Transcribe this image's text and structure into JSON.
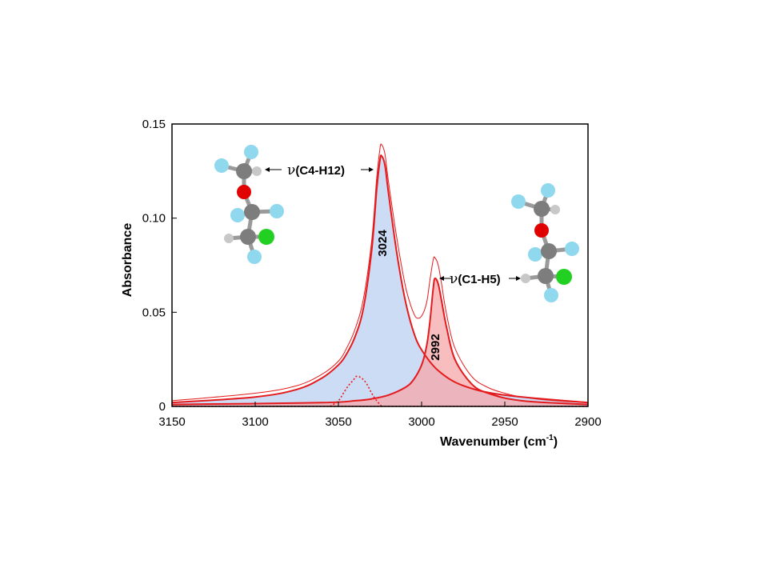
{
  "chart_data": {
    "type": "line",
    "xlabel": "Wavenumber (cm",
    "xlabel_sup": "-1",
    "xlabel_close": ")",
    "ylabel": "Absorbance",
    "xlim": [
      3150,
      2900
    ],
    "ylim": [
      0,
      0.15
    ],
    "x_ticks": [
      3150,
      3100,
      3050,
      3000,
      2950,
      2900
    ],
    "x_tick_labels": [
      "3150",
      "3100",
      "3050",
      "3000",
      "2950",
      "2900"
    ],
    "y_ticks": [
      0,
      0.05,
      0.1,
      0.15
    ],
    "y_tick_labels": [
      "0",
      "0.05",
      "0.10",
      "0.15"
    ],
    "grid": false,
    "series": [
      {
        "role": "band-3024",
        "color": "#e41a1c",
        "fill": "#c8d8f4",
        "x": [
          3150,
          3100,
          3075,
          3060,
          3050,
          3045,
          3040,
          3035,
          3030,
          3027,
          3025,
          3024,
          3022,
          3020,
          3015,
          3010,
          3005,
          3000,
          2990,
          2975,
          2950,
          2900
        ],
        "y": [
          0.002,
          0.005,
          0.009,
          0.015,
          0.022,
          0.028,
          0.037,
          0.052,
          0.083,
          0.115,
          0.131,
          0.133,
          0.128,
          0.114,
          0.082,
          0.057,
          0.04,
          0.03,
          0.019,
          0.011,
          0.006,
          0.002
        ]
      },
      {
        "role": "band-2992",
        "color": "#e41a1c",
        "fill": "#f5a8aa",
        "x": [
          3150,
          3060,
          3040,
          3030,
          3020,
          3010,
          3005,
          3000,
          2997,
          2995,
          2993,
          2992,
          2990,
          2988,
          2985,
          2980,
          2970,
          2960,
          2940,
          2900
        ],
        "y": [
          0.001,
          0.002,
          0.003,
          0.004,
          0.006,
          0.01,
          0.014,
          0.022,
          0.032,
          0.045,
          0.063,
          0.068,
          0.065,
          0.056,
          0.042,
          0.025,
          0.012,
          0.007,
          0.003,
          0.001
        ]
      },
      {
        "role": "envelope",
        "color": "#e41a1c",
        "x": [
          3150,
          3100,
          3075,
          3060,
          3050,
          3045,
          3040,
          3035,
          3030,
          3027,
          3025,
          3024,
          3022,
          3020,
          3015,
          3010,
          3007,
          3005,
          3003,
          3000,
          2997,
          2995,
          2993,
          2992,
          2990,
          2988,
          2985,
          2980,
          2970,
          2960,
          2950,
          2940,
          2920,
          2900
        ],
        "y": [
          0.003,
          0.007,
          0.011,
          0.017,
          0.024,
          0.031,
          0.041,
          0.057,
          0.088,
          0.121,
          0.137,
          0.139,
          0.134,
          0.12,
          0.09,
          0.065,
          0.055,
          0.05,
          0.047,
          0.048,
          0.055,
          0.067,
          0.078,
          0.079,
          0.075,
          0.065,
          0.049,
          0.031,
          0.016,
          0.01,
          0.007,
          0.005,
          0.003,
          0.002
        ]
      },
      {
        "role": "minor-component",
        "color": "#e41a1c",
        "x": [
          3055,
          3050,
          3047,
          3044,
          3041,
          3039,
          3036,
          3033,
          3030,
          3027,
          3024
        ],
        "y": [
          0.0,
          0.003,
          0.007,
          0.011,
          0.014,
          0.016,
          0.015,
          0.012,
          0.007,
          0.003,
          0.0
        ]
      },
      {
        "role": "baseline",
        "color": "#e41a1c",
        "x": [
          3150,
          2900
        ],
        "y": [
          0.0,
          0.0
        ]
      }
    ],
    "peak_labels": [
      {
        "text": "3024",
        "x": 3024,
        "y": 0.088
      },
      {
        "text": "2992",
        "x": 2992,
        "y": 0.029
      }
    ],
    "annotations": [
      {
        "nu": "ν",
        "text": "(C4-H12)",
        "arrow_to_peak": 3024
      },
      {
        "nu": "ν",
        "text": "(C1-H5)",
        "arrow_to_peak": 2992
      }
    ]
  },
  "molecules": [
    {
      "name": "molecule-left"
    },
    {
      "name": "molecule-right"
    }
  ]
}
